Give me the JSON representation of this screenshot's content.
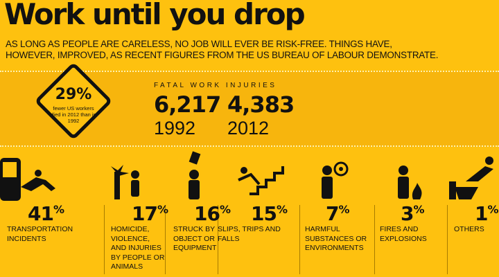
{
  "header": {
    "title": "Work until you drop",
    "subtitle_lines": [
      "AS LONG AS PEOPLE ARE CARELESS, NO JOB WILL EVER BE RISK-FREE. THINGS HAVE,",
      "HOWEVER, IMPROVED, AS RECENT FIGURES FROM THE US BUREAU OF LABOUR DEMONSTRATE."
    ]
  },
  "highlight": {
    "percent": "29%",
    "note_lines": [
      "fewer US workers",
      "died in 2012 than in",
      "1992"
    ]
  },
  "fatal": {
    "label": "FATAL WORK INJURIES",
    "figures": [
      {
        "value": "6,217",
        "year": "1992"
      },
      {
        "value": "4,383",
        "year": "2012"
      }
    ]
  },
  "causes": [
    {
      "number": "41",
      "sign": "%",
      "lines": [
        "TRANSPORTATION",
        "INCIDENTS"
      ]
    },
    {
      "number": "17",
      "sign": "%",
      "lines": [
        "HOMICIDE,",
        "VIOLENCE,",
        "AND INJURIES",
        "BY PEOPLE OR",
        "ANIMALS"
      ]
    },
    {
      "number": "16",
      "sign": "%",
      "lines": [
        "STRUCK BY",
        "OBJECT OR",
        "EQUIPMENT"
      ]
    },
    {
      "number": "15",
      "sign": "%",
      "lines": [
        "SLIPS, TRIPS AND",
        "FALLS"
      ]
    },
    {
      "number": "7",
      "sign": "%",
      "lines": [
        "HARMFUL",
        "SUBSTANCES OR",
        "ENVIRONMENTS"
      ]
    },
    {
      "number": "3",
      "sign": "%",
      "lines": [
        "FIRES AND",
        "EXPLOSIONS"
      ]
    },
    {
      "number": "1",
      "sign": "%",
      "lines": [
        "OTHERS"
      ]
    }
  ]
}
